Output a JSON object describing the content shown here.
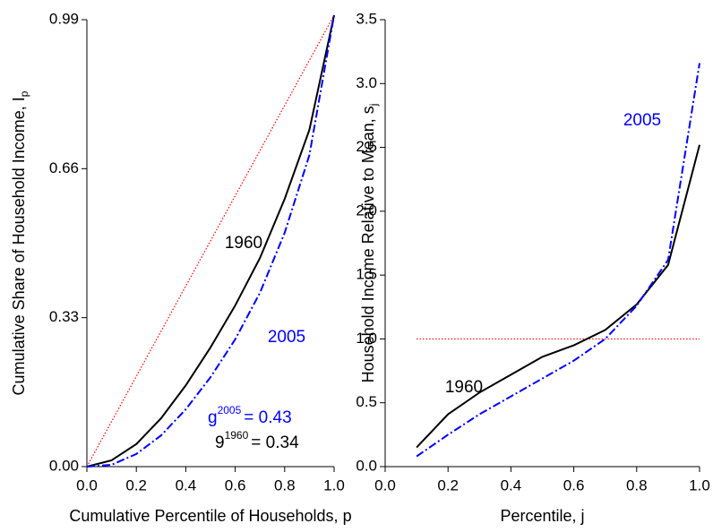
{
  "chart_data": [
    {
      "type": "line",
      "x_label": {
        "text": "Cumulative Percentile of Households, p"
      },
      "y_label": {
        "text": "Cumulative Share of Household Income, I",
        "sub": "p"
      },
      "x": [
        0,
        0.1,
        0.2,
        0.3,
        0.4,
        0.5,
        0.6,
        0.7,
        0.8,
        0.9,
        1.0
      ],
      "series": [
        {
          "color": "#000000",
          "style": "solid",
          "values": [
            0,
            0.014,
            0.05,
            0.107,
            0.18,
            0.264,
            0.357,
            0.462,
            0.593,
            0.746,
            1.0
          ]
        },
        {
          "color": "#0000ff",
          "style": "dashdot",
          "values": [
            0,
            0.004,
            0.028,
            0.069,
            0.127,
            0.198,
            0.282,
            0.385,
            0.518,
            0.69,
            1.0
          ]
        }
      ],
      "reference_line": {
        "color": "#ff0000",
        "x": [
          0,
          1
        ],
        "y": [
          0,
          1
        ]
      },
      "annotations": [
        {
          "text": "1960",
          "color": "#000000"
        },
        {
          "text": "2005",
          "color": "#0000ff"
        },
        {
          "text": "g",
          "sup": "2005",
          "rest": "= 0.43",
          "color": "#0000ff"
        },
        {
          "text": "9",
          "sup": "1960",
          "rest": "= 0.34",
          "color": "#000000"
        }
      ],
      "xlim": [
        0,
        1.0
      ],
      "xticks": [
        {
          "value": 0,
          "label": "0.0"
        },
        0.2,
        0.4,
        0.6,
        0.8,
        {
          "value": 1.0,
          "label": "1.0"
        }
      ],
      "ylim": [
        0,
        0.99
      ],
      "yticks": [
        {
          "value": 0,
          "label": "0.00"
        },
        0.33,
        0.66,
        0.99
      ]
    },
    {
      "type": "line",
      "x_label": {
        "text": "Percentile, j"
      },
      "y_label": {
        "text": "Household Income Relative to Mean, s",
        "sub": "j"
      },
      "x": [
        0.1,
        0.2,
        0.3,
        0.4,
        0.5,
        0.6,
        0.7,
        0.8,
        0.9,
        1.0
      ],
      "series": [
        {
          "color": "#000000",
          "style": "solid",
          "values": [
            0.15,
            0.41,
            0.58,
            0.72,
            0.86,
            0.95,
            1.07,
            1.27,
            1.58,
            2.52
          ]
        },
        {
          "color": "#0000ff",
          "style": "dashdot",
          "values": [
            0.08,
            0.25,
            0.41,
            0.55,
            0.69,
            0.83,
            1.0,
            1.26,
            1.62,
            3.16
          ]
        }
      ],
      "reference_line": {
        "color": "#ff0000",
        "x": [
          0.1,
          1.0
        ],
        "y": [
          1.0,
          1.0
        ]
      },
      "annotations": [
        {
          "text": "2005",
          "color": "#0000ff"
        },
        {
          "text": "1960",
          "color": "#000000"
        }
      ],
      "xlim": [
        0,
        1.0
      ],
      "xticks": [
        {
          "value": 0,
          "label": "0.0"
        },
        0.2,
        0.4,
        0.6,
        0.8,
        {
          "value": 1.0,
          "label": "1.0"
        }
      ],
      "ylim": [
        0,
        3.5
      ],
      "yticks": [
        {
          "value": 0,
          "label": "0.0"
        },
        0.5,
        {
          "value": 1.0,
          "label": "1.0"
        },
        1.5,
        {
          "value": 2.0,
          "label": "2.0"
        },
        2.5,
        {
          "value": 3.0,
          "label": "3.0"
        },
        3.5
      ]
    }
  ]
}
